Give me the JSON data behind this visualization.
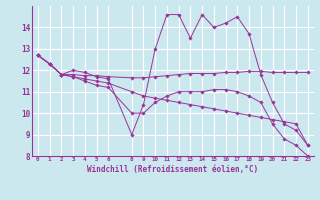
{
  "xlabel": "Windchill (Refroidissement éolien,°C)",
  "xlim": [
    -0.5,
    23.5
  ],
  "ylim": [
    8,
    15
  ],
  "yticks": [
    8,
    9,
    10,
    11,
    12,
    13,
    14
  ],
  "xticks": [
    0,
    1,
    2,
    3,
    4,
    5,
    6,
    8,
    9,
    10,
    11,
    12,
    13,
    14,
    15,
    16,
    17,
    18,
    19,
    20,
    21,
    22,
    23
  ],
  "bg_color": "#cce8ef",
  "grid_color": "#ffffff",
  "line_color": "#993399",
  "series": [
    [
      12.7,
      12.3,
      11.8,
      12.0,
      11.9,
      11.7,
      11.6,
      9.0,
      10.4,
      13.0,
      14.6,
      14.6,
      13.5,
      14.6,
      14.0,
      14.2,
      14.5,
      13.7,
      11.8,
      10.5,
      9.5,
      9.2,
      8.5
    ],
    [
      12.7,
      12.3,
      11.8,
      11.8,
      11.75,
      11.75,
      11.7,
      11.65,
      11.65,
      11.7,
      11.75,
      11.8,
      11.85,
      11.85,
      11.85,
      11.9,
      11.9,
      11.95,
      11.95,
      11.9,
      11.9,
      11.9,
      11.9
    ],
    [
      12.7,
      12.3,
      11.8,
      11.7,
      11.5,
      11.3,
      11.2,
      10.0,
      10.0,
      10.5,
      10.8,
      11.0,
      11.0,
      11.0,
      11.1,
      11.1,
      11.0,
      10.8,
      10.5,
      9.5,
      8.8,
      8.5,
      8.0
    ],
    [
      12.7,
      12.3,
      11.8,
      11.7,
      11.6,
      11.5,
      11.4,
      11.0,
      10.8,
      10.7,
      10.6,
      10.5,
      10.4,
      10.3,
      10.2,
      10.1,
      10.0,
      9.9,
      9.8,
      9.7,
      9.6,
      9.5,
      8.5
    ]
  ],
  "x_values": [
    0,
    1,
    2,
    3,
    4,
    5,
    6,
    8,
    9,
    10,
    11,
    12,
    13,
    14,
    15,
    16,
    17,
    18,
    19,
    20,
    21,
    22,
    23
  ]
}
